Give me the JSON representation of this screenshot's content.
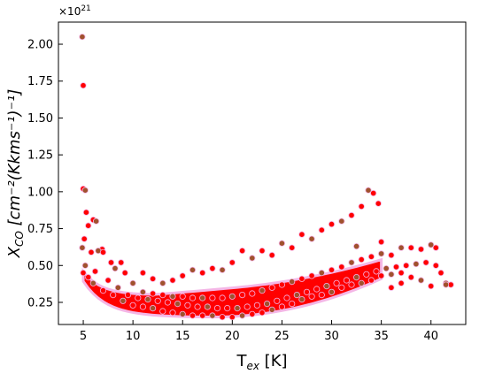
{
  "chart_data": {
    "type": "scatter",
    "xlabel": "T",
    "xlabel_sub": "ex",
    "xlabel_unit": " [K]",
    "ylabel": "X",
    "ylabel_sub": "CO",
    "ylabel_unit": " [cm⁻²(Kkms⁻¹)⁻¹]",
    "y_multiplier": "×10",
    "y_multiplier_exp": "21",
    "xlim": [
      2.5,
      43.5
    ],
    "ylim": [
      0.1,
      2.15
    ],
    "xticks": [
      5,
      10,
      15,
      20,
      25,
      30,
      35,
      40
    ],
    "xtick_labels": [
      "5",
      "10",
      "15",
      "20",
      "25",
      "30",
      "35",
      "40"
    ],
    "yticks": [
      0.25,
      0.5,
      0.75,
      1.0,
      1.25,
      1.5,
      1.75,
      2.0
    ],
    "ytick_labels": [
      "0.25",
      "0.50",
      "0.75",
      "1.00",
      "1.25",
      "1.50",
      "1.75",
      "2.00"
    ],
    "grid": false,
    "legend": "none",
    "colors": {
      "primary": "#ff0000",
      "secondary": "#a0522d",
      "halo": "#f4b6e6"
    },
    "series": [
      {
        "values": [
          [
            4.9,
            2.05
          ],
          [
            5.0,
            1.72
          ],
          [
            5.0,
            1.02
          ],
          [
            5.2,
            1.01
          ],
          [
            5.3,
            0.86
          ],
          [
            6.0,
            0.81
          ],
          [
            6.3,
            0.8
          ],
          [
            5.5,
            0.77
          ],
          [
            5.1,
            0.68
          ],
          [
            4.9,
            0.62
          ],
          [
            5.8,
            0.59
          ],
          [
            6.9,
            0.61
          ],
          [
            6.5,
            0.6
          ],
          [
            7.0,
            0.59
          ],
          [
            7.8,
            0.52
          ],
          [
            8.2,
            0.48
          ],
          [
            8.8,
            0.52
          ],
          [
            9.2,
            0.45
          ],
          [
            10.0,
            0.38
          ],
          [
            11.0,
            0.45
          ],
          [
            12.0,
            0.41
          ],
          [
            13.0,
            0.38
          ],
          [
            14.0,
            0.4
          ],
          [
            15.0,
            0.43
          ],
          [
            16.0,
            0.47
          ],
          [
            17.0,
            0.45
          ],
          [
            18.0,
            0.48
          ],
          [
            19.0,
            0.47
          ],
          [
            20.0,
            0.52
          ],
          [
            21.0,
            0.6
          ],
          [
            22.0,
            0.55
          ],
          [
            23.0,
            0.6
          ],
          [
            24.0,
            0.57
          ],
          [
            25.0,
            0.65
          ],
          [
            26.0,
            0.62
          ],
          [
            27.0,
            0.71
          ],
          [
            28.0,
            0.68
          ],
          [
            29.0,
            0.74
          ],
          [
            30.0,
            0.78
          ],
          [
            31.0,
            0.8
          ],
          [
            32.0,
            0.84
          ],
          [
            33.0,
            0.9
          ],
          [
            33.7,
            1.01
          ],
          [
            34.2,
            0.99
          ],
          [
            34.7,
            0.92
          ],
          [
            32.5,
            0.63
          ],
          [
            35.0,
            0.66
          ],
          [
            36.0,
            0.57
          ],
          [
            37.0,
            0.62
          ],
          [
            38.0,
            0.62
          ],
          [
            39.0,
            0.61
          ],
          [
            40.0,
            0.64
          ],
          [
            40.5,
            0.62
          ],
          [
            41.0,
            0.45
          ],
          [
            41.5,
            0.38
          ],
          [
            42.0,
            0.37
          ],
          [
            40.0,
            0.36
          ],
          [
            39.0,
            0.4
          ],
          [
            38.0,
            0.42
          ],
          [
            37.0,
            0.45
          ],
          [
            36.0,
            0.44
          ],
          [
            35.0,
            0.43
          ],
          [
            34.0,
            0.4
          ],
          [
            33.0,
            0.38
          ],
          [
            32.0,
            0.37
          ],
          [
            31.0,
            0.35
          ],
          [
            30.0,
            0.32
          ],
          [
            29.0,
            0.3
          ],
          [
            28.0,
            0.29
          ],
          [
            27.0,
            0.27
          ],
          [
            26.0,
            0.24
          ],
          [
            25.0,
            0.22
          ],
          [
            24.0,
            0.2
          ],
          [
            23.0,
            0.18
          ],
          [
            22.0,
            0.17
          ],
          [
            21.0,
            0.16
          ],
          [
            20.0,
            0.15
          ],
          [
            19.0,
            0.15
          ],
          [
            18.0,
            0.16
          ],
          [
            17.0,
            0.16
          ],
          [
            16.0,
            0.16
          ],
          [
            15.0,
            0.17
          ],
          [
            14.0,
            0.18
          ],
          [
            13.0,
            0.19
          ],
          [
            12.0,
            0.21
          ],
          [
            11.0,
            0.22
          ],
          [
            10.0,
            0.23
          ],
          [
            9.0,
            0.26
          ],
          [
            8.0,
            0.3
          ],
          [
            7.0,
            0.33
          ],
          [
            6.0,
            0.38
          ],
          [
            5.5,
            0.42
          ],
          [
            5.0,
            0.45
          ],
          [
            5.2,
            0.5
          ],
          [
            6.2,
            0.46
          ],
          [
            7.5,
            0.4
          ],
          [
            8.5,
            0.35
          ],
          [
            9.5,
            0.3
          ],
          [
            10.5,
            0.28
          ],
          [
            11.5,
            0.27
          ],
          [
            12.5,
            0.26
          ],
          [
            13.5,
            0.25
          ],
          [
            14.5,
            0.24
          ],
          [
            15.5,
            0.23
          ],
          [
            16.5,
            0.22
          ],
          [
            17.5,
            0.22
          ],
          [
            18.5,
            0.21
          ],
          [
            19.5,
            0.21
          ],
          [
            20.5,
            0.21
          ],
          [
            21.5,
            0.22
          ],
          [
            22.5,
            0.23
          ],
          [
            23.5,
            0.24
          ],
          [
            24.5,
            0.26
          ],
          [
            25.5,
            0.28
          ],
          [
            26.5,
            0.3
          ],
          [
            27.5,
            0.32
          ],
          [
            28.5,
            0.34
          ],
          [
            29.5,
            0.36
          ],
          [
            30.5,
            0.38
          ],
          [
            31.5,
            0.4
          ],
          [
            32.5,
            0.42
          ],
          [
            33.5,
            0.44
          ],
          [
            34.5,
            0.46
          ],
          [
            35.5,
            0.48
          ],
          [
            36.5,
            0.49
          ],
          [
            37.5,
            0.5
          ],
          [
            38.5,
            0.51
          ],
          [
            39.5,
            0.52
          ],
          [
            40.5,
            0.5
          ],
          [
            41.5,
            0.37
          ],
          [
            37.0,
            0.38
          ],
          [
            36.0,
            0.35
          ],
          [
            11.0,
            0.32
          ],
          [
            12.0,
            0.31
          ],
          [
            13.0,
            0.3
          ],
          [
            14.0,
            0.29
          ],
          [
            15.0,
            0.29
          ],
          [
            16.0,
            0.28
          ],
          [
            17.0,
            0.28
          ],
          [
            18.0,
            0.28
          ],
          [
            19.0,
            0.28
          ],
          [
            20.0,
            0.29
          ],
          [
            21.0,
            0.3
          ],
          [
            22.0,
            0.31
          ],
          [
            23.0,
            0.33
          ],
          [
            24.0,
            0.35
          ],
          [
            25.0,
            0.37
          ],
          [
            26.0,
            0.39
          ],
          [
            27.0,
            0.41
          ],
          [
            28.0,
            0.43
          ],
          [
            29.0,
            0.45
          ],
          [
            30.0,
            0.47
          ],
          [
            31.0,
            0.49
          ],
          [
            32.0,
            0.52
          ],
          [
            33.0,
            0.54
          ],
          [
            34.0,
            0.56
          ],
          [
            35.0,
            0.58
          ]
        ]
      }
    ]
  }
}
